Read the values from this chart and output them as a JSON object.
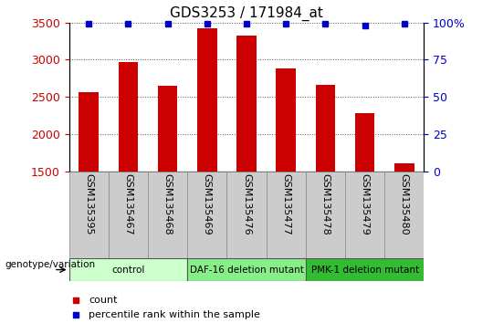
{
  "title": "GDS3253 / 171984_at",
  "samples": [
    "GSM135395",
    "GSM135467",
    "GSM135468",
    "GSM135469",
    "GSM135476",
    "GSM135477",
    "GSM135478",
    "GSM135479",
    "GSM135480"
  ],
  "counts": [
    2560,
    2970,
    2650,
    3420,
    3320,
    2880,
    2660,
    2280,
    1610
  ],
  "percentile_ranks": [
    99,
    99,
    99,
    99,
    99,
    99,
    99,
    98,
    99
  ],
  "ylim_left": [
    1500,
    3500
  ],
  "ylim_right": [
    0,
    100
  ],
  "yticks_left": [
    1500,
    2000,
    2500,
    3000,
    3500
  ],
  "yticks_right": [
    0,
    25,
    50,
    75,
    100
  ],
  "bar_color": "#cc0000",
  "dot_color": "#0000cc",
  "groups": [
    {
      "label": "control",
      "start": 0,
      "end": 3,
      "color": "#ccffcc"
    },
    {
      "label": "DAF-16 deletion mutant",
      "start": 3,
      "end": 6,
      "color": "#88ee88"
    },
    {
      "label": "PMK-1 deletion mutant",
      "start": 6,
      "end": 9,
      "color": "#33bb33"
    }
  ],
  "title_fontsize": 11,
  "tick_fontsize": 9,
  "sample_fontsize": 8,
  "legend_label_count": "count",
  "legend_label_percentile": "percentile rank within the sample",
  "genotype_label": "genotype/variation",
  "left_tick_color": "#cc0000",
  "right_tick_color": "#0000cc",
  "grid_color": "#555555",
  "sample_box_color": "#cccccc",
  "background_color": "#ffffff"
}
